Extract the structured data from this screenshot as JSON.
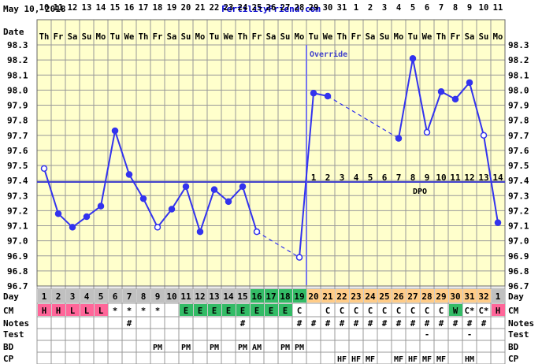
{
  "header": {
    "date": "May 10, 2018",
    "site": "FertilityFriend.com"
  },
  "labels": {
    "date_row": "Date",
    "day_row": "Day",
    "cm_row": "CM",
    "notes_row": "Notes",
    "test_row": "Test",
    "bd_row": "BD",
    "cp_row": "CP",
    "override": "Override",
    "dpo": "DPO"
  },
  "colors": {
    "plot_bg": "#ffffcc",
    "grid": "#999999",
    "temp_line": "#3333ee",
    "coverline": "#4444cc",
    "override_line": "#7777ee",
    "day_gray": "#c0c0c0",
    "day_green": "#33bb66",
    "day_orange": "#ffcc88",
    "cm_pink": "#ff6699",
    "cm_green": "#33bb66",
    "link": "#0000cc"
  },
  "chart_data": {
    "type": "line",
    "title": "",
    "xlabel": "",
    "ylabel": "",
    "ylim": [
      96.7,
      98.3
    ],
    "yticks": [
      98.3,
      98.2,
      98.1,
      98.0,
      97.9,
      97.8,
      97.7,
      97.6,
      97.5,
      97.4,
      97.3,
      97.2,
      97.1,
      97.0,
      96.9,
      96.8,
      96.7
    ],
    "coverline": 97.39,
    "override_cycle_day": 19,
    "date_days": [
      "10",
      "11",
      "12",
      "13",
      "14",
      "15",
      "16",
      "17",
      "18",
      "19",
      "20",
      "21",
      "22",
      "23",
      "24",
      "25",
      "26",
      "27",
      "28",
      "29",
      "30",
      "31",
      "1",
      "2",
      "3",
      "4",
      "5",
      "6",
      "7",
      "8",
      "9",
      "10",
      "11"
    ],
    "weekdays": [
      "Th",
      "Fr",
      "Sa",
      "Su",
      "Mo",
      "Tu",
      "We",
      "Th",
      "Fr",
      "Sa",
      "Su",
      "Mo",
      "Tu",
      "We",
      "Th",
      "Fr",
      "Sa",
      "Su",
      "Mo",
      "Tu",
      "We",
      "Th",
      "Fr",
      "Sa",
      "Su",
      "Mo",
      "Tu",
      "We",
      "Th",
      "Fr",
      "Sa",
      "Su",
      "Mo"
    ],
    "cycle_days": [
      "1",
      "2",
      "3",
      "4",
      "5",
      "6",
      "7",
      "8",
      "9",
      "10",
      "11",
      "12",
      "13",
      "14",
      "15",
      "16",
      "17",
      "18",
      "19",
      "20",
      "21",
      "22",
      "23",
      "24",
      "25",
      "26",
      "27",
      "28",
      "29",
      "30",
      "31",
      "32",
      "1"
    ],
    "day_styles": [
      "g",
      "g",
      "g",
      "g",
      "g",
      "g",
      "g",
      "g",
      "g",
      "g",
      "g",
      "g",
      "g",
      "g",
      "g",
      "G",
      "G",
      "G",
      "G",
      "o",
      "o",
      "o",
      "o",
      "o",
      "o",
      "o",
      "o",
      "o",
      "o",
      "o",
      "o",
      "o",
      "g"
    ],
    "temps": [
      97.48,
      97.18,
      97.09,
      97.16,
      97.23,
      97.73,
      97.44,
      97.28,
      97.09,
      97.21,
      97.36,
      97.06,
      97.34,
      97.26,
      97.36,
      97.06,
      null,
      null,
      96.89,
      97.98,
      97.96,
      null,
      null,
      null,
      null,
      97.68,
      98.21,
      97.72,
      97.99,
      97.94,
      98.05,
      97.7,
      97.12
    ],
    "dpo": [
      "",
      "",
      "",
      "",
      "",
      "",
      "",
      "",
      "",
      "",
      "",
      "",
      "",
      "",
      "",
      "",
      "",
      "",
      "",
      "1",
      "2",
      "3",
      "4",
      "5",
      "6",
      "7",
      "8",
      "9",
      "10",
      "11",
      "12",
      "13",
      "14"
    ],
    "cm": [
      "H",
      "H",
      "L",
      "L",
      "L",
      "*",
      "*",
      "*",
      "*",
      "",
      "E",
      "E",
      "E",
      "E",
      "E",
      "E",
      "E",
      "E",
      "C",
      "",
      "C",
      "C",
      "C",
      "C",
      "C",
      "C",
      "C",
      "C",
      "C",
      "W",
      "C*",
      "C*",
      "H"
    ],
    "cm_styles": [
      "p",
      "p",
      "p",
      "p",
      "p",
      "",
      "",
      "",
      "",
      "",
      "G",
      "G",
      "G",
      "G",
      "G",
      "G",
      "G",
      "G",
      "",
      "",
      "",
      "",
      "",
      "",
      "",
      "",
      "",
      "",
      "",
      "G",
      "",
      "",
      "p"
    ],
    "notes": [
      "",
      "",
      "",
      "",
      "",
      "",
      "#",
      "",
      "",
      "",
      "",
      "",
      "",
      "",
      "#",
      "",
      "",
      "",
      "#",
      "#",
      "#",
      "#",
      "#",
      "#",
      "#",
      "#",
      "#",
      "#",
      "#",
      "#",
      "#",
      "#",
      ""
    ],
    "test": [
      "",
      "",
      "",
      "",
      "",
      "",
      "",
      "",
      "",
      "",
      "",
      "",
      "",
      "",
      "",
      "",
      "",
      "",
      "",
      "",
      "",
      "",
      "",
      "",
      "",
      "",
      "",
      "-",
      "",
      "",
      "-",
      "",
      ""
    ],
    "bd": [
      "",
      "",
      "",
      "",
      "",
      "",
      "",
      "",
      "PM",
      "",
      "PM",
      "",
      "PM",
      "",
      "PM",
      "AM",
      "",
      "PM",
      "PM",
      "",
      "",
      "",
      "",
      "",
      "",
      "",
      "",
      "",
      "",
      "",
      "",
      "",
      ""
    ],
    "cp": [
      "",
      "",
      "",
      "",
      "",
      "",
      "",
      "",
      "",
      "",
      "",
      "",
      "",
      "",
      "",
      "",
      "",
      "",
      "",
      "",
      "",
      "HF",
      "HF",
      "MF",
      "",
      "MF",
      "HF",
      "MF",
      "MF",
      "",
      "HM",
      "",
      ""
    ]
  }
}
